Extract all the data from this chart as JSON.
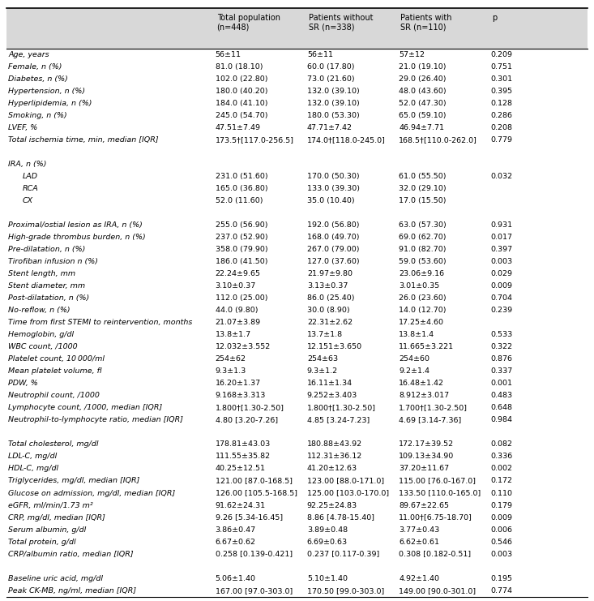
{
  "headers": [
    "",
    "Total population\n(n=448)",
    "Patients without\nSR (n=338)",
    "Patients with\nSR (n=110)",
    "p"
  ],
  "rows": [
    {
      "label": "Age, years",
      "italic": true,
      "indent": 0,
      "vals": [
        "56±11",
        "56±11",
        "57±12",
        "0.209"
      ],
      "sep_before": false
    },
    {
      "label": "Female, n (%)",
      "italic": true,
      "indent": 0,
      "vals": [
        "81.0 (18.10)",
        "60.0 (17.80)",
        "21.0 (19.10)",
        "0.751"
      ],
      "sep_before": false
    },
    {
      "label": "Diabetes, n (%)",
      "italic": true,
      "indent": 0,
      "vals": [
        "102.0 (22.80)",
        "73.0 (21.60)",
        "29.0 (26.40)",
        "0.301"
      ],
      "sep_before": false
    },
    {
      "label": "Hypertension, n (%)",
      "italic": true,
      "indent": 0,
      "vals": [
        "180.0 (40.20)",
        "132.0 (39.10)",
        "48.0 (43.60)",
        "0.395"
      ],
      "sep_before": false
    },
    {
      "label": "Hyperlipidemia, n (%)",
      "italic": true,
      "indent": 0,
      "vals": [
        "184.0 (41.10)",
        "132.0 (39.10)",
        "52.0 (47.30)",
        "0.128"
      ],
      "sep_before": false
    },
    {
      "label": "Smoking, n (%)",
      "italic": true,
      "indent": 0,
      "vals": [
        "245.0 (54.70)",
        "180.0 (53.30)",
        "65.0 (59.10)",
        "0.286"
      ],
      "sep_before": false
    },
    {
      "label": "LVEF, %",
      "italic": true,
      "indent": 0,
      "vals": [
        "47.51±7.49",
        "47.71±7.42",
        "46.94±7.71",
        "0.208"
      ],
      "sep_before": false
    },
    {
      "label": "Total ischemia time, min, median [IQR]",
      "italic": true,
      "indent": 0,
      "vals": [
        "173.5†[117.0-256.5]",
        "174.0†[118.0-245.0]",
        "168.5†[110.0-262.0]",
        "0.779"
      ],
      "sep_before": false
    },
    {
      "label": "",
      "italic": false,
      "indent": 0,
      "vals": [
        "",
        "",
        "",
        ""
      ],
      "sep_before": false
    },
    {
      "label": "IRA, n (%)",
      "italic": true,
      "indent": 0,
      "vals": [
        "",
        "",
        "",
        ""
      ],
      "sep_before": false
    },
    {
      "label": "LAD",
      "italic": true,
      "indent": 1,
      "vals": [
        "231.0 (51.60)",
        "170.0 (50.30)",
        "61.0 (55.50)",
        "0.032"
      ],
      "sep_before": false
    },
    {
      "label": "RCA",
      "italic": true,
      "indent": 1,
      "vals": [
        "165.0 (36.80)",
        "133.0 (39.30)",
        "32.0 (29.10)",
        ""
      ],
      "sep_before": false
    },
    {
      "label": "CX",
      "italic": true,
      "indent": 1,
      "vals": [
        "52.0 (11.60)",
        "35.0 (10.40)",
        "17.0 (15.50)",
        ""
      ],
      "sep_before": false
    },
    {
      "label": "",
      "italic": false,
      "indent": 0,
      "vals": [
        "",
        "",
        "",
        ""
      ],
      "sep_before": false
    },
    {
      "label": "Proximal/ostial lesion as IRA, n (%)",
      "italic": true,
      "indent": 0,
      "vals": [
        "255.0 (56.90)",
        "192.0 (56.80)",
        "63.0 (57.30)",
        "0.931"
      ],
      "sep_before": false
    },
    {
      "label": "High-grade thrombus burden, n (%)",
      "italic": true,
      "indent": 0,
      "vals": [
        "237.0 (52.90)",
        "168.0 (49.70)",
        "69.0 (62.70)",
        "0.017"
      ],
      "sep_before": false
    },
    {
      "label": "Pre-dilatation, n (%)",
      "italic": true,
      "indent": 0,
      "vals": [
        "358.0 (79.90)",
        "267.0 (79.00)",
        "91.0 (82.70)",
        "0.397"
      ],
      "sep_before": false
    },
    {
      "label": "Tirofiban infusion n (%)",
      "italic": true,
      "indent": 0,
      "vals": [
        "186.0 (41.50)",
        "127.0 (37.60)",
        "59.0 (53.60)",
        "0.003"
      ],
      "sep_before": false
    },
    {
      "label": "Stent length, mm",
      "italic": true,
      "indent": 0,
      "vals": [
        "22.24±9.65",
        "21.97±9.80",
        "23.06±9.16",
        "0.029"
      ],
      "sep_before": false
    },
    {
      "label": "Stent diameter, mm",
      "italic": true,
      "indent": 0,
      "vals": [
        "3.10±0.37",
        "3.13±0.37",
        "3.01±0.35",
        "0.009"
      ],
      "sep_before": false
    },
    {
      "label": "Post-dilatation, n (%)",
      "italic": true,
      "indent": 0,
      "vals": [
        "112.0 (25.00)",
        "86.0 (25.40)",
        "26.0 (23.60)",
        "0.704"
      ],
      "sep_before": false
    },
    {
      "label": "No-reflow, n (%)",
      "italic": true,
      "indent": 0,
      "vals": [
        "44.0 (9.80)",
        "30.0 (8.90)",
        "14.0 (12.70)",
        "0.239"
      ],
      "sep_before": false
    },
    {
      "label": "Time from first STEMI to reintervention, months",
      "italic": true,
      "indent": 0,
      "vals": [
        "21.07±3.89",
        "22.31±2.62",
        "17.25±4.60",
        ""
      ],
      "sep_before": false
    },
    {
      "label": "Hemoglobin, g/dl",
      "italic": true,
      "indent": 0,
      "vals": [
        "13.8±1.7",
        "13.7±1.8",
        "13.8±1.4",
        "0.533"
      ],
      "sep_before": false
    },
    {
      "label": "WBC count, /1000",
      "italic": true,
      "indent": 0,
      "vals": [
        "12.032±3.552",
        "12.151±3.650",
        "11.665±3.221",
        "0.322"
      ],
      "sep_before": false
    },
    {
      "label": "Platelet count, 10 000/ml",
      "italic": true,
      "indent": 0,
      "vals": [
        "254±62",
        "254±63",
        "254±60",
        "0.876"
      ],
      "sep_before": false
    },
    {
      "label": "Mean platelet volume, fl",
      "italic": true,
      "indent": 0,
      "vals": [
        "9.3±1.3",
        "9.3±1.2",
        "9.2±1.4",
        "0.337"
      ],
      "sep_before": false
    },
    {
      "label": "PDW, %",
      "italic": true,
      "indent": 0,
      "vals": [
        "16.20±1.37",
        "16.11±1.34",
        "16.48±1.42",
        "0.001"
      ],
      "sep_before": false
    },
    {
      "label": "Neutrophil count, /1000",
      "italic": true,
      "indent": 0,
      "vals": [
        "9.168±3.313",
        "9.252±3.403",
        "8.912±3.017",
        "0.483"
      ],
      "sep_before": false
    },
    {
      "label": "Lymphocyte count, /1000, median [IQR]",
      "italic": true,
      "indent": 0,
      "vals": [
        "1.800†[1.30-2.50]",
        "1.800†[1.30-2.50]",
        "1.700†[1.30-2.50]",
        "0.648"
      ],
      "sep_before": false
    },
    {
      "label": "Neutrophil-to-lymphocyte ratio, median [IQR]",
      "italic": true,
      "indent": 0,
      "vals": [
        "4.80 [3.20-7.26]",
        "4.85 [3.24-7.23]",
        "4.69 [3.14-7.36]",
        "0.984"
      ],
      "sep_before": false
    },
    {
      "label": "",
      "italic": false,
      "indent": 0,
      "vals": [
        "",
        "",
        "",
        ""
      ],
      "sep_before": false
    },
    {
      "label": "Total cholesterol, mg/dl",
      "italic": true,
      "indent": 0,
      "vals": [
        "178.81±43.03",
        "180.88±43.92",
        "172.17±39.52",
        "0.082"
      ],
      "sep_before": false
    },
    {
      "label": "LDL-C, mg/dl",
      "italic": true,
      "indent": 0,
      "vals": [
        "111.55±35.82",
        "112.31±36.12",
        "109.13±34.90",
        "0.336"
      ],
      "sep_before": false
    },
    {
      "label": "HDL-C, mg/dl",
      "italic": true,
      "indent": 0,
      "vals": [
        "40.25±12.51",
        "41.20±12.63",
        "37.20±11.67",
        "0.002"
      ],
      "sep_before": false
    },
    {
      "label": "Triglycerides, mg/dl, median [IQR]",
      "italic": true,
      "indent": 0,
      "vals": [
        "121.00 [87.0-168.5]",
        "123.00 [88.0-171.0]",
        "115.00 [76.0-167.0]",
        "0.172"
      ],
      "sep_before": false
    },
    {
      "label": "Glucose on admission, mg/dl, median [IQR]",
      "italic": true,
      "indent": 0,
      "vals": [
        "126.00 [105.5-168.5]",
        "125.00 [103.0-170.0]",
        "133.50 [110.0-165.0]",
        "0.110"
      ],
      "sep_before": false
    },
    {
      "label": "eGFR, ml/min/1.73 m²",
      "italic": true,
      "indent": 0,
      "vals": [
        "91.62±24.31",
        "92.25±24.83",
        "89.67±22.65",
        "0.179"
      ],
      "sep_before": false
    },
    {
      "label": "CRP, mg/dl, median [IQR]",
      "italic": true,
      "indent": 0,
      "vals": [
        "9.26 [5.34-16.45]",
        "8.86 [4.78-15.40]",
        "11.00†[6.75-18.70]",
        "0.009"
      ],
      "sep_before": false
    },
    {
      "label": "Serum albumin, g/dl",
      "italic": true,
      "indent": 0,
      "vals": [
        "3.86±0.47",
        "3.89±0.48",
        "3.77±0.43",
        "0.006"
      ],
      "sep_before": false
    },
    {
      "label": "Total protein, g/dl",
      "italic": true,
      "indent": 0,
      "vals": [
        "6.67±0.62",
        "6.69±0.63",
        "6.62±0.61",
        "0.546"
      ],
      "sep_before": false
    },
    {
      "label": "CRP/albumin ratio, median [IQR]",
      "italic": true,
      "indent": 0,
      "vals": [
        "0.258 [0.139-0.421]",
        "0.237 [0.117-0.39]",
        "0.308 [0.182-0.51]",
        "0.003"
      ],
      "sep_before": false
    },
    {
      "label": "",
      "italic": false,
      "indent": 0,
      "vals": [
        "",
        "",
        "",
        ""
      ],
      "sep_before": false
    },
    {
      "label": "Baseline uric acid, mg/dl",
      "italic": true,
      "indent": 0,
      "vals": [
        "5.06±1.40",
        "5.10±1.40",
        "4.92±1.40",
        "0.195"
      ],
      "sep_before": false
    },
    {
      "label": "Peak CK-MB, ng/ml, median [IQR]",
      "italic": true,
      "indent": 0,
      "vals": [
        "167.00 [97.0-303.0]",
        "170.50 [99.0-303.0]",
        "149.00 [90.0-301.0]",
        "0.774"
      ],
      "sep_before": false
    }
  ],
  "header_bg": "#d8d8d8",
  "font_size": 6.8,
  "header_font_size": 7.0
}
